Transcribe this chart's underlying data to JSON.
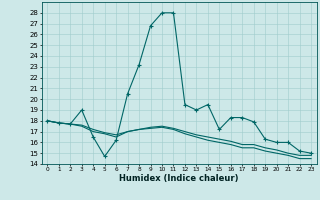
{
  "title": "",
  "xlabel": "Humidex (Indice chaleur)",
  "xlim": [
    -0.5,
    23.5
  ],
  "ylim": [
    14,
    29
  ],
  "yticks": [
    14,
    15,
    16,
    17,
    18,
    19,
    20,
    21,
    22,
    23,
    24,
    25,
    26,
    27,
    28
  ],
  "xticks": [
    0,
    1,
    2,
    3,
    4,
    5,
    6,
    7,
    8,
    9,
    10,
    11,
    12,
    13,
    14,
    15,
    16,
    17,
    18,
    19,
    20,
    21,
    22,
    23
  ],
  "background_color": "#cde8e8",
  "grid_color": "#a0cccc",
  "line_color": "#006666",
  "line1_x": [
    0,
    1,
    2,
    3,
    4,
    5,
    6,
    7,
    8,
    9,
    10,
    11,
    12,
    13,
    14,
    15,
    16,
    17,
    18,
    19,
    20,
    21,
    22,
    23
  ],
  "line1_y": [
    18.0,
    17.8,
    17.7,
    19.0,
    16.5,
    14.7,
    16.2,
    20.5,
    23.2,
    26.8,
    28.0,
    28.0,
    19.5,
    19.0,
    19.5,
    17.2,
    18.3,
    18.3,
    17.9,
    16.3,
    16.0,
    16.0,
    15.2,
    15.0
  ],
  "line2_x": [
    0,
    1,
    2,
    3,
    4,
    5,
    6,
    7,
    8,
    9,
    10,
    11,
    12,
    13,
    14,
    15,
    16,
    17,
    18,
    19,
    20,
    21,
    22,
    23
  ],
  "line2_y": [
    18.0,
    17.8,
    17.7,
    17.5,
    17.0,
    16.8,
    16.5,
    17.0,
    17.2,
    17.3,
    17.4,
    17.2,
    16.8,
    16.5,
    16.2,
    16.0,
    15.8,
    15.5,
    15.5,
    15.2,
    15.0,
    14.8,
    14.5,
    14.5
  ],
  "line3_x": [
    0,
    1,
    2,
    3,
    4,
    5,
    6,
    7,
    8,
    9,
    10,
    11,
    12,
    13,
    14,
    15,
    16,
    17,
    18,
    19,
    20,
    21,
    22,
    23
  ],
  "line3_y": [
    18.0,
    17.8,
    17.7,
    17.6,
    17.2,
    16.9,
    16.7,
    17.0,
    17.2,
    17.4,
    17.5,
    17.3,
    17.0,
    16.7,
    16.5,
    16.3,
    16.1,
    15.8,
    15.8,
    15.5,
    15.3,
    15.0,
    14.8,
    14.8
  ]
}
